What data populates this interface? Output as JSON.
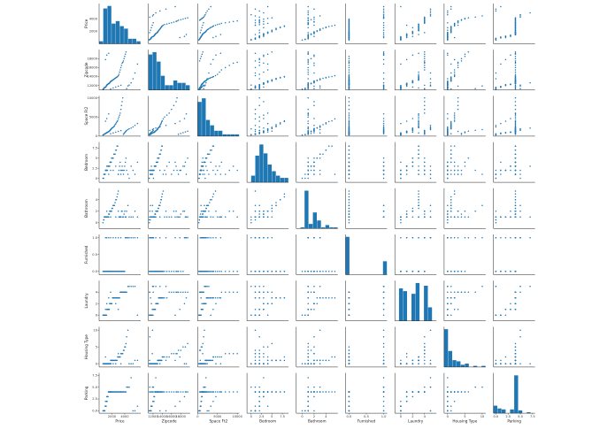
{
  "chart_data": {
    "type": "scatter",
    "layout": "pairplot",
    "color": "#1f77b4",
    "diagonal": "histogram",
    "variables": [
      {
        "name": "Price",
        "ticks": [
          2000,
          4000
        ],
        "tick_labels": [
          "2000",
          "4000"
        ],
        "range": [
          0,
          6500
        ],
        "sample": [
          600,
          700,
          750,
          800,
          850,
          900,
          950,
          1000,
          1050,
          1100,
          1150,
          1200,
          1250,
          1300,
          1350,
          1400,
          1450,
          1500,
          1550,
          1600,
          1650,
          1700,
          1750,
          1800,
          1850,
          1900,
          1950,
          2000,
          2100,
          2200,
          2300,
          2400,
          2500,
          2600,
          2700,
          2800,
          2900,
          3000,
          3100,
          3200,
          3300,
          3400,
          3500,
          3600,
          3700,
          3800,
          3900,
          4000,
          4100,
          4200,
          4300,
          4500,
          4700,
          5000,
          5300,
          5600,
          6000,
          1000,
          1200,
          1500,
          1800,
          2200,
          2600,
          3000,
          3400
        ]
      },
      {
        "name": "Zipcode",
        "ticks": [
          12000,
          14000,
          16000,
          18000
        ],
        "tick_labels": [
          "12000",
          "14000",
          "16000",
          "18000"
        ],
        "range": [
          11000,
          20000
        ],
        "sample": [
          11200,
          11200,
          11400,
          11500,
          11500,
          11600,
          11600,
          11600,
          11700,
          11800,
          12000,
          12000,
          12200,
          12200,
          12300,
          12300,
          12400,
          12400,
          12500,
          12500,
          12600,
          12700,
          12800,
          12900,
          13000,
          13000,
          13000,
          13100,
          13200,
          13300,
          13400,
          13500,
          13600,
          13700,
          13800,
          13900,
          14000,
          14200,
          14500,
          15000,
          15500,
          16000,
          16500,
          17000,
          17200,
          17500,
          18000,
          18500,
          19000,
          19500,
          11300,
          11900,
          12100,
          12600,
          13500,
          14800,
          16800,
          17800,
          18800,
          19200,
          11250,
          11450,
          11650,
          11850,
          12050
        ]
      },
      {
        "name": "Space Ft2",
        "ticks": [
          0,
          5000,
          10000
        ],
        "tick_labels": [
          "0",
          "5000",
          "10000"
        ],
        "range": [
          0,
          10500
        ],
        "sample": [
          300,
          400,
          450,
          500,
          550,
          600,
          650,
          700,
          750,
          800,
          850,
          900,
          950,
          1000,
          1050,
          1100,
          1150,
          1200,
          1250,
          1300,
          1400,
          1500,
          1600,
          1700,
          1800,
          1900,
          2000,
          2100,
          2200,
          2300,
          2500,
          2700,
          3000,
          3200,
          3500,
          3800,
          4000,
          4500,
          5000,
          5500,
          6000,
          7000,
          8000,
          9000,
          10000,
          500,
          700,
          900,
          1100,
          1300,
          1500,
          1700,
          1900,
          2100,
          2400,
          2800,
          3300,
          3900,
          4600,
          5800,
          650,
          850,
          1050,
          1250,
          1450
        ]
      },
      {
        "name": "Bedroom",
        "ticks": [
          0,
          2.5,
          5,
          7.5
        ],
        "tick_labels": [
          "0",
          "2.5",
          "5",
          "7.5"
        ],
        "range": [
          -1,
          9
        ],
        "sample": [
          0,
          0,
          1,
          1,
          1,
          1,
          1,
          2,
          2,
          2,
          2,
          2,
          2,
          2,
          3,
          3,
          3,
          3,
          3,
          3,
          3,
          4,
          4,
          4,
          4,
          4,
          5,
          5,
          5,
          5,
          6,
          6,
          6,
          7,
          7,
          8,
          8,
          1,
          2,
          3,
          4,
          1,
          2,
          3,
          2,
          1,
          2,
          3,
          4,
          5,
          2,
          1,
          0,
          3,
          2,
          1,
          4,
          2,
          3,
          1,
          2,
          2,
          3,
          1,
          2
        ]
      },
      {
        "name": "Bathroom",
        "ticks": [
          0,
          2,
          4
        ],
        "tick_labels": [
          "0",
          "2",
          "4"
        ],
        "range": [
          -1,
          6
        ],
        "sample": [
          0,
          0.5,
          0.5,
          1,
          1,
          1,
          1,
          1,
          1,
          1,
          1,
          1,
          1,
          1,
          1,
          1,
          1,
          1.5,
          1.5,
          1.5,
          2,
          2,
          2,
          2,
          2,
          2,
          2,
          2.5,
          2.5,
          3,
          3,
          3,
          3.5,
          4,
          4,
          4.5,
          5,
          5.5,
          1,
          1,
          1,
          1,
          2,
          2,
          1,
          1,
          1.5,
          2,
          1,
          1,
          2,
          3,
          1,
          1,
          1,
          2,
          1,
          1,
          2,
          1,
          1,
          3,
          1,
          2,
          1
        ]
      },
      {
        "name": "Furnished",
        "ticks": [
          0,
          0.5,
          1
        ],
        "tick_labels": [
          "0.0",
          "0.5",
          "1.0"
        ],
        "range": [
          -0.1,
          1.1
        ],
        "sample": [
          0,
          0,
          0,
          0,
          0,
          0,
          0,
          0,
          0,
          0,
          0,
          0,
          0,
          0,
          0,
          0,
          0,
          0,
          0,
          0,
          0,
          0,
          0,
          0,
          0,
          0,
          0,
          0,
          0,
          0,
          0,
          0,
          0,
          0,
          0,
          0,
          0,
          0,
          0,
          0,
          0,
          0,
          0,
          0,
          0,
          0,
          0,
          0,
          1,
          1,
          1,
          1,
          1,
          1,
          1,
          1,
          1,
          1,
          1,
          1,
          1,
          1,
          1,
          1,
          1
        ]
      },
      {
        "name": "Laundry",
        "ticks": [
          0,
          2,
          4
        ],
        "tick_labels": [
          "0",
          "2",
          "4"
        ],
        "range": [
          -1,
          6
        ],
        "sample": [
          0,
          0,
          0,
          0,
          0,
          0,
          0,
          0,
          0,
          0,
          0,
          1,
          1,
          1,
          1,
          1,
          1,
          1,
          1,
          1,
          2,
          2,
          2,
          2,
          2,
          2,
          2,
          2,
          3,
          3,
          3,
          3,
          3,
          3,
          3,
          3,
          3,
          3,
          3,
          3,
          4,
          4,
          4,
          4,
          4,
          4,
          4,
          4,
          4,
          4,
          4,
          5,
          5,
          5,
          5,
          5,
          0,
          1,
          2,
          3,
          4,
          3,
          2,
          1,
          4
        ]
      },
      {
        "name": "Housing Type",
        "ticks": [
          0,
          5,
          10
        ],
        "tick_labels": [
          "0",
          "5",
          "10"
        ],
        "range": [
          -1,
          11
        ],
        "sample": [
          0,
          0,
          0,
          0,
          0,
          0,
          0,
          0,
          0,
          0,
          0,
          0,
          0,
          0,
          0,
          0,
          0,
          0,
          0,
          0,
          0,
          0,
          0,
          0,
          0,
          1,
          1,
          1,
          1,
          1,
          1,
          1,
          1,
          1,
          1,
          1,
          2,
          2,
          2,
          2,
          2,
          3,
          3,
          3,
          3,
          4,
          4,
          5,
          5,
          6,
          8,
          10,
          0,
          0,
          0,
          1,
          1,
          2,
          0,
          0,
          1,
          0,
          0,
          3,
          0
        ]
      },
      {
        "name": "Parking",
        "ticks": [
          0,
          2.5,
          5,
          7.5
        ],
        "tick_labels": [
          "0.0",
          "2.5",
          "5.0",
          "7.5"
        ],
        "range": [
          -0.5,
          8
        ],
        "sample": [
          0,
          0,
          0,
          0,
          0,
          0,
          1,
          1,
          1,
          1,
          2,
          2,
          2,
          3,
          3,
          3,
          4,
          4,
          4,
          4,
          4,
          4,
          4,
          4,
          4,
          4,
          4,
          4,
          4,
          4,
          4,
          4,
          4,
          4,
          4,
          4,
          4,
          4,
          4,
          4,
          4,
          4,
          4,
          4,
          4,
          4,
          4,
          4,
          4,
          4,
          5,
          5,
          5,
          7,
          0,
          0,
          1,
          2,
          3,
          4,
          4,
          4,
          4,
          4,
          4
        ]
      }
    ]
  }
}
